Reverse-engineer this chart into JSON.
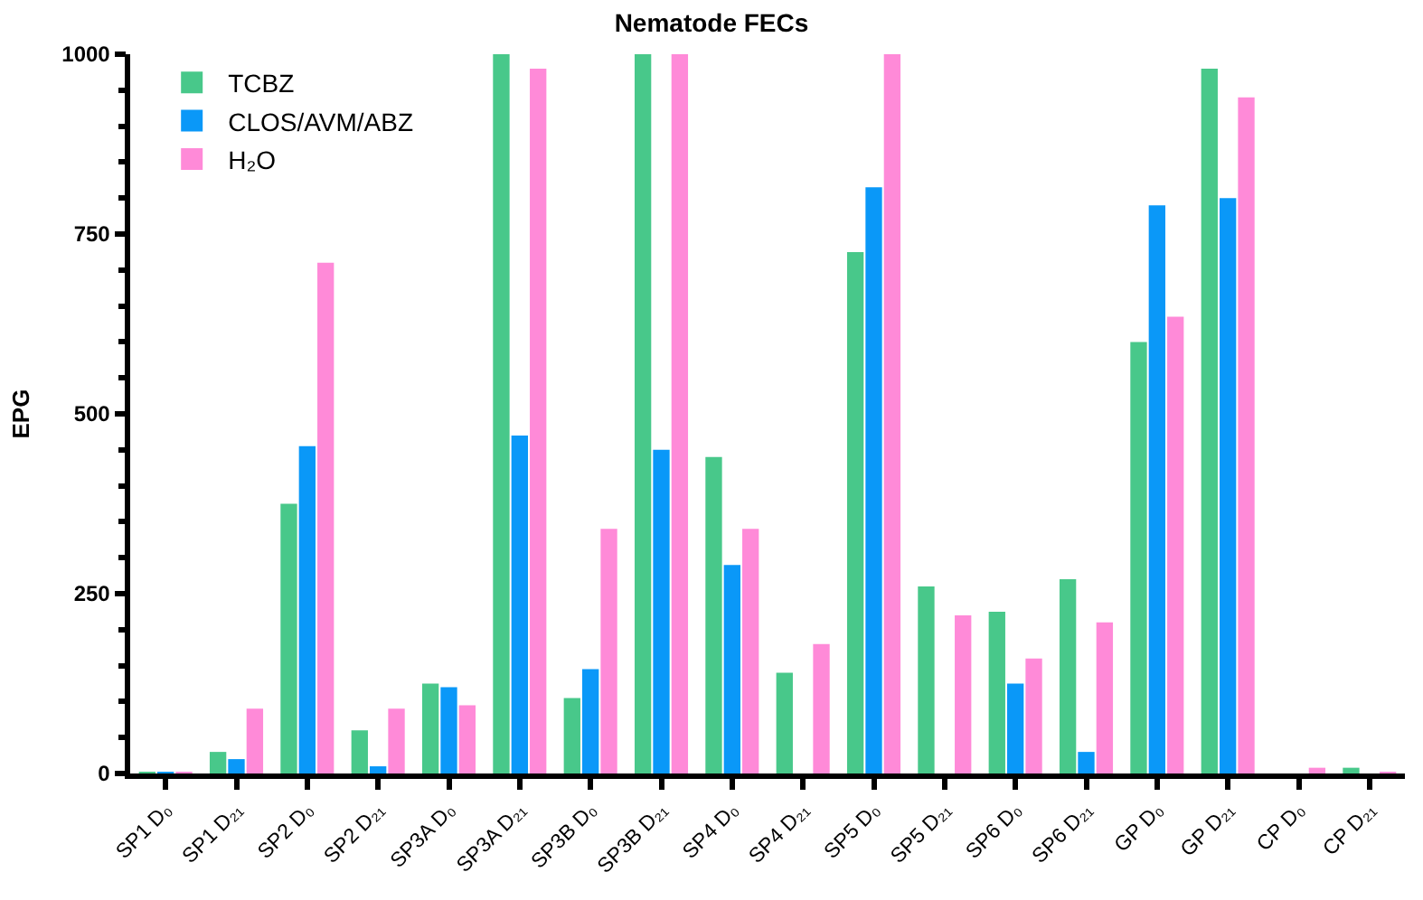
{
  "chart_data": {
    "type": "bar",
    "title": "Nematode FECs",
    "ylabel": "EPG",
    "categories": [
      "SP1 D₀",
      "SP1 D₂₁",
      "SP2 D₀",
      "SP2 D₂₁",
      "SP3A D₀",
      "SP3A D₂₁",
      "SP3B D₀",
      "SP3B D₂₁",
      "SP4 D₀",
      "SP4 D₂₁",
      "SP5 D₀",
      "SP5 D₂₁",
      "SP6 D₀",
      "SP6 D₂₁",
      "GP D₀",
      "GP D₂₁",
      "CP D₀",
      "CP D₂₁"
    ],
    "series": [
      {
        "name": "TCBZ",
        "color": "#48c88a",
        "values": [
          2,
          30,
          375,
          60,
          125,
          1000,
          105,
          1000,
          440,
          140,
          725,
          260,
          225,
          270,
          600,
          980,
          0,
          8
        ]
      },
      {
        "name": "CLOS/AVM/ABZ",
        "color": "#0a98f8",
        "values": [
          2,
          20,
          455,
          10,
          120,
          470,
          145,
          450,
          290,
          0,
          815,
          0,
          125,
          30,
          790,
          800,
          0,
          0
        ]
      },
      {
        "name": "H₂O",
        "color": "#ff8ad8",
        "values": [
          2,
          90,
          710,
          90,
          95,
          980,
          340,
          1000,
          340,
          180,
          1000,
          220,
          160,
          210,
          635,
          940,
          8,
          2
        ]
      }
    ],
    "ylim": [
      0,
      1000
    ],
    "yticks": [
      0,
      250,
      500,
      750,
      1000
    ],
    "grid": false,
    "legend": "top left"
  }
}
